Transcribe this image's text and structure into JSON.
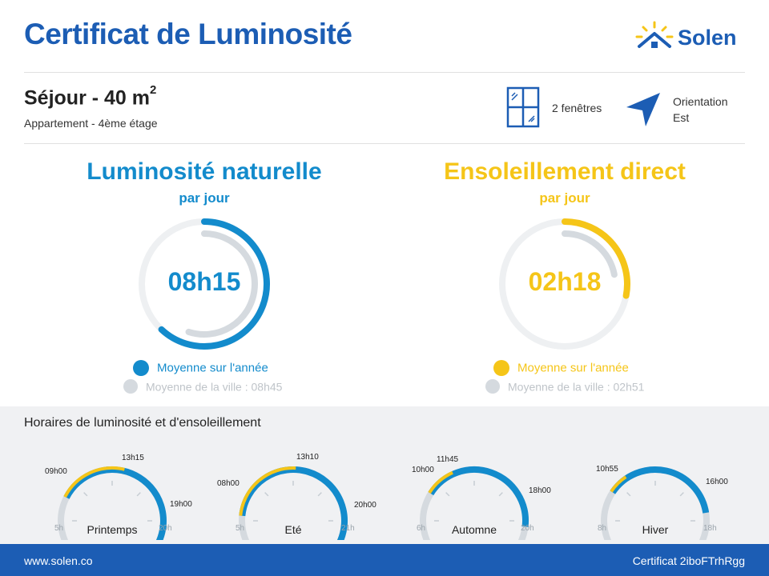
{
  "header": {
    "title": "Certificat de Luminosité",
    "brand": "Solen"
  },
  "room": {
    "name": "Séjour - 40 m",
    "name_sup": "2",
    "subtitle": "Appartement - 4ème étage",
    "windows": "2 fenêtres",
    "orientation_label": "Orientation",
    "orientation_value": "Est"
  },
  "natural": {
    "title": "Luminosité naturelle",
    "sub": "par jour",
    "value": "08h15",
    "fill_fraction": 0.62,
    "city_fraction": 0.55,
    "legend_main": "Moyenne sur l'année",
    "legend_city": "Moyenne de la ville : 08h45",
    "color": "#138bcc"
  },
  "direct": {
    "title": "Ensoleillement direct",
    "sub": "par jour",
    "value": "02h18",
    "fill_fraction": 0.28,
    "city_fraction": 0.22,
    "legend_main": "Moyenne sur l'année",
    "legend_city": "Moyenne de la ville : 02h51",
    "color": "#f5c518"
  },
  "schedule": {
    "title": "Horaires de luminosité et d'ensoleillement",
    "seasons": [
      {
        "name": "Printemps",
        "start_axis": "5h",
        "end_axis": "20h",
        "light_start": "09h00",
        "sun_end": "13h15",
        "light_end": "19h00"
      },
      {
        "name": "Eté",
        "start_axis": "5h",
        "end_axis": "21h",
        "light_start": "08h00",
        "sun_end": "13h10",
        "light_end": "20h00"
      },
      {
        "name": "Automne",
        "start_axis": "6h",
        "end_axis": "20h",
        "light_start": "10h00",
        "sun_end": "11h45",
        "light_end": "18h00"
      },
      {
        "name": "Hiver",
        "start_axis": "8h",
        "end_axis": "18h",
        "light_start": "10h55",
        "sun_end": "",
        "light_end": "16h00"
      }
    ]
  },
  "footer": {
    "website": "www.solen.co",
    "certificate": "Certificat 2iboFTrhRgg"
  }
}
